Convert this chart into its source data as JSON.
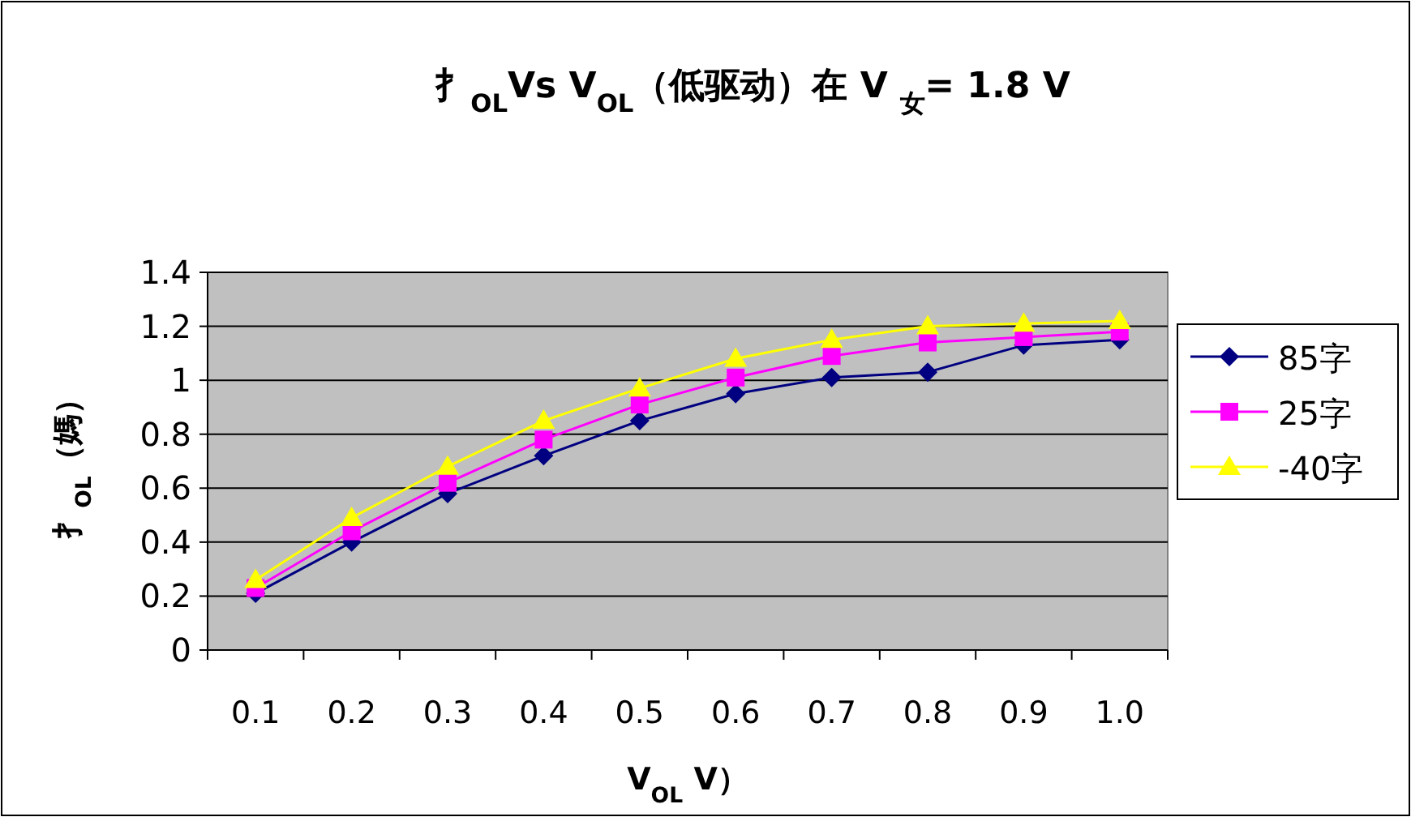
{
  "chart_data": {
    "type": "line",
    "title": "扌$_{OL}$Vs V$_{OL}$（低驱动）在 V $_{女}$= 1.8 V",
    "xlabel": "V$_{OL}$ V）",
    "ylabel": "扌$_{OL}$（媽）",
    "categories": [
      "0.1",
      "0.2",
      "0.3",
      "0.4",
      "0.5",
      "0.6",
      "0.7",
      "0.8",
      "0.9",
      "1.0"
    ],
    "series": [
      {
        "name": "85字",
        "color": "#000080",
        "marker": "diamond",
        "values": [
          0.21,
          0.4,
          0.58,
          0.72,
          0.85,
          0.95,
          1.01,
          1.03,
          1.13,
          1.15
        ]
      },
      {
        "name": "25字",
        "color": "#ff00ff",
        "marker": "square",
        "values": [
          0.23,
          0.44,
          0.62,
          0.78,
          0.91,
          1.01,
          1.09,
          1.14,
          1.16,
          1.18
        ]
      },
      {
        "name": "-40字",
        "color": "#ffff00",
        "marker": "triangle",
        "values": [
          0.26,
          0.49,
          0.68,
          0.85,
          0.97,
          1.08,
          1.15,
          1.2,
          1.21,
          1.22
        ]
      }
    ],
    "ylim": [
      0,
      1.4
    ],
    "yticks": [
      0,
      0.2,
      0.4,
      0.6,
      0.8,
      1,
      1.2,
      1.4
    ],
    "grid": "y",
    "legend": "right"
  }
}
